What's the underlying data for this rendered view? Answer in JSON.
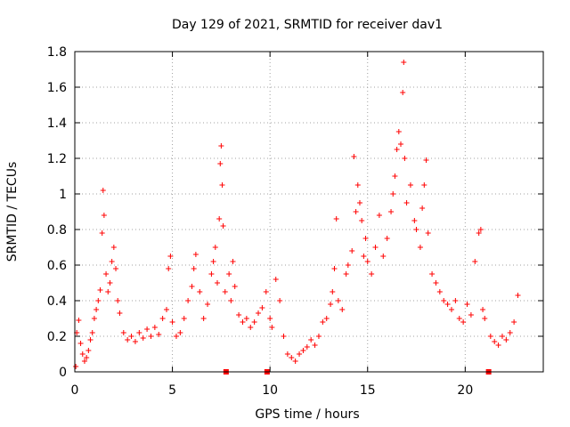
{
  "chart_data": {
    "type": "scatter",
    "title": "Day 129 of 2021, SRMTID for receiver dav1",
    "xlabel": "GPS time / hours",
    "ylabel": "SRMTID / TECUs",
    "xlim": [
      0,
      24
    ],
    "ylim": [
      0,
      1.8
    ],
    "xticks": [
      0,
      5,
      10,
      15,
      20
    ],
    "xtick_labels": [
      "0",
      "5",
      "10",
      "15",
      "20"
    ],
    "yticks": [
      0,
      0.2,
      0.4,
      0.6,
      0.8,
      1.0,
      1.2,
      1.4,
      1.6,
      1.8
    ],
    "ytick_labels": [
      "0",
      "0.2",
      "0.4",
      "0.6",
      "0.8",
      "1",
      "1.2",
      "1.4",
      "1.6",
      "1.8"
    ],
    "grid": true,
    "marker": "+",
    "color": "#ff0000",
    "data_gaps_hours": [
      7.75,
      9.85,
      21.2
    ],
    "series": [
      {
        "name": "SRMTID",
        "points": [
          [
            0.05,
            0.03
          ],
          [
            0.1,
            0.22
          ],
          [
            0.2,
            0.29
          ],
          [
            0.3,
            0.16
          ],
          [
            0.4,
            0.1
          ],
          [
            0.5,
            0.06
          ],
          [
            0.6,
            0.08
          ],
          [
            0.7,
            0.12
          ],
          [
            0.8,
            0.18
          ],
          [
            0.9,
            0.22
          ],
          [
            1.0,
            0.3
          ],
          [
            1.1,
            0.35
          ],
          [
            1.2,
            0.4
          ],
          [
            1.3,
            0.46
          ],
          [
            1.4,
            0.78
          ],
          [
            1.45,
            1.02
          ],
          [
            1.5,
            0.88
          ],
          [
            1.6,
            0.55
          ],
          [
            1.7,
            0.45
          ],
          [
            1.8,
            0.5
          ],
          [
            1.9,
            0.62
          ],
          [
            2.0,
            0.7
          ],
          [
            2.1,
            0.58
          ],
          [
            2.2,
            0.4
          ],
          [
            2.3,
            0.33
          ],
          [
            2.5,
            0.22
          ],
          [
            2.7,
            0.18
          ],
          [
            2.9,
            0.2
          ],
          [
            3.1,
            0.17
          ],
          [
            3.3,
            0.22
          ],
          [
            3.5,
            0.19
          ],
          [
            3.7,
            0.24
          ],
          [
            3.9,
            0.2
          ],
          [
            4.1,
            0.25
          ],
          [
            4.3,
            0.21
          ],
          [
            4.5,
            0.3
          ],
          [
            4.7,
            0.35
          ],
          [
            4.8,
            0.58
          ],
          [
            4.9,
            0.65
          ],
          [
            5.0,
            0.28
          ],
          [
            5.2,
            0.2
          ],
          [
            5.4,
            0.22
          ],
          [
            5.6,
            0.3
          ],
          [
            5.8,
            0.4
          ],
          [
            6.0,
            0.48
          ],
          [
            6.1,
            0.58
          ],
          [
            6.2,
            0.66
          ],
          [
            6.4,
            0.45
          ],
          [
            6.6,
            0.3
          ],
          [
            6.8,
            0.38
          ],
          [
            7.0,
            0.55
          ],
          [
            7.1,
            0.62
          ],
          [
            7.2,
            0.7
          ],
          [
            7.3,
            0.5
          ],
          [
            7.4,
            0.86
          ],
          [
            7.45,
            1.17
          ],
          [
            7.5,
            1.27
          ],
          [
            7.55,
            1.05
          ],
          [
            7.6,
            0.82
          ],
          [
            7.7,
            0.45
          ],
          [
            7.9,
            0.55
          ],
          [
            8.0,
            0.4
          ],
          [
            8.1,
            0.62
          ],
          [
            8.2,
            0.48
          ],
          [
            8.4,
            0.32
          ],
          [
            8.6,
            0.28
          ],
          [
            8.8,
            0.3
          ],
          [
            9.0,
            0.25
          ],
          [
            9.2,
            0.28
          ],
          [
            9.4,
            0.33
          ],
          [
            9.6,
            0.36
          ],
          [
            9.8,
            0.45
          ],
          [
            10.0,
            0.3
          ],
          [
            10.1,
            0.25
          ],
          [
            10.3,
            0.52
          ],
          [
            10.5,
            0.4
          ],
          [
            10.7,
            0.2
          ],
          [
            10.9,
            0.1
          ],
          [
            11.1,
            0.08
          ],
          [
            11.3,
            0.06
          ],
          [
            11.5,
            0.1
          ],
          [
            11.7,
            0.12
          ],
          [
            11.9,
            0.14
          ],
          [
            12.1,
            0.18
          ],
          [
            12.3,
            0.15
          ],
          [
            12.5,
            0.2
          ],
          [
            12.7,
            0.28
          ],
          [
            12.9,
            0.3
          ],
          [
            13.1,
            0.38
          ],
          [
            13.2,
            0.45
          ],
          [
            13.3,
            0.58
          ],
          [
            13.4,
            0.86
          ],
          [
            13.5,
            0.4
          ],
          [
            13.7,
            0.35
          ],
          [
            13.9,
            0.55
          ],
          [
            14.0,
            0.6
          ],
          [
            14.2,
            0.68
          ],
          [
            14.3,
            1.21
          ],
          [
            14.4,
            0.9
          ],
          [
            14.5,
            1.05
          ],
          [
            14.6,
            0.95
          ],
          [
            14.7,
            0.85
          ],
          [
            14.8,
            0.65
          ],
          [
            14.9,
            0.75
          ],
          [
            15.0,
            0.62
          ],
          [
            15.2,
            0.55
          ],
          [
            15.4,
            0.7
          ],
          [
            15.6,
            0.88
          ],
          [
            15.8,
            0.65
          ],
          [
            16.0,
            0.75
          ],
          [
            16.2,
            0.9
          ],
          [
            16.3,
            1.0
          ],
          [
            16.4,
            1.1
          ],
          [
            16.5,
            1.25
          ],
          [
            16.6,
            1.35
          ],
          [
            16.7,
            1.28
          ],
          [
            16.8,
            1.57
          ],
          [
            16.85,
            1.74
          ],
          [
            16.9,
            1.2
          ],
          [
            17.0,
            0.95
          ],
          [
            17.2,
            1.05
          ],
          [
            17.4,
            0.85
          ],
          [
            17.5,
            0.8
          ],
          [
            17.7,
            0.7
          ],
          [
            17.8,
            0.92
          ],
          [
            17.9,
            1.05
          ],
          [
            18.0,
            1.19
          ],
          [
            18.1,
            0.78
          ],
          [
            18.3,
            0.55
          ],
          [
            18.5,
            0.5
          ],
          [
            18.7,
            0.45
          ],
          [
            18.9,
            0.4
          ],
          [
            19.1,
            0.38
          ],
          [
            19.3,
            0.35
          ],
          [
            19.5,
            0.4
          ],
          [
            19.7,
            0.3
          ],
          [
            19.9,
            0.28
          ],
          [
            20.1,
            0.38
          ],
          [
            20.3,
            0.32
          ],
          [
            20.5,
            0.62
          ],
          [
            20.7,
            0.78
          ],
          [
            20.8,
            0.8
          ],
          [
            20.9,
            0.35
          ],
          [
            21.0,
            0.3
          ],
          [
            21.3,
            0.2
          ],
          [
            21.5,
            0.17
          ],
          [
            21.7,
            0.15
          ],
          [
            21.9,
            0.2
          ],
          [
            22.1,
            0.18
          ],
          [
            22.3,
            0.22
          ],
          [
            22.5,
            0.28
          ],
          [
            22.7,
            0.43
          ]
        ]
      }
    ]
  }
}
